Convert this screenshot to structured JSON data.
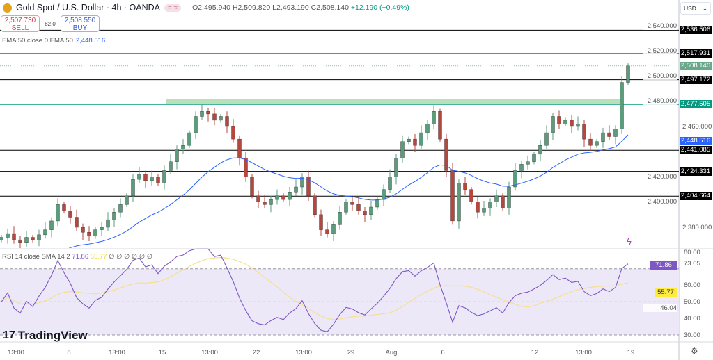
{
  "header": {
    "title": "Gold Spot / U.S. Dollar · 4h · OANDA",
    "o": "O2,495.940",
    "h": "H2,509.820",
    "l": "L2,493.190",
    "c": "C2,508.140",
    "chg": "+12.190 (+0.49%)"
  },
  "trade": {
    "sell_price": "2,507.730",
    "sell_label": "SELL",
    "spread": "82.0",
    "buy_price": "2,508.550",
    "buy_label": "BUY"
  },
  "ema_legend": {
    "label": "EMA 50 close 0 EMA 50",
    "value": "2,448.516"
  },
  "rsi_legend": {
    "label": "RSI 14 close SMA 14 2",
    "rsi": "71.86",
    "sma": "55.77",
    "extra": "∅ ∅ ∅ ∅ ∅ ∅"
  },
  "brand": "TradingView",
  "currency": "USD",
  "colors": {
    "up": "#5b9c7d",
    "down": "#b5473f",
    "ema": "#2962ff",
    "rsi": "#7e57c2",
    "rsi_sma": "#f5e08a",
    "zone": "#a6d8a8"
  },
  "chart_data": {
    "type": "candlestick",
    "price_ticks": [
      "2,540.000",
      "2,520.000",
      "2,500.000",
      "2,480.000",
      "2,460.000",
      "2,420.000",
      "2,400.000",
      "2,380.000"
    ],
    "price_tick_values": [
      2540,
      2520,
      2500,
      2480,
      2460,
      2420,
      2400,
      2380
    ],
    "ylim": [
      2370,
      2545
    ],
    "closes": [
      2372,
      2375,
      2370,
      2368,
      2372,
      2370,
      2374,
      2378,
      2385,
      2398,
      2393,
      2388,
      2380,
      2376,
      2373,
      2378,
      2380,
      2386,
      2392,
      2398,
      2405,
      2418,
      2422,
      2417,
      2420,
      2415,
      2425,
      2432,
      2442,
      2445,
      2455,
      2468,
      2472,
      2470,
      2465,
      2468,
      2460,
      2450,
      2435,
      2420,
      2405,
      2400,
      2398,
      2402,
      2405,
      2402,
      2408,
      2412,
      2420,
      2405,
      2390,
      2378,
      2375,
      2382,
      2392,
      2400,
      2398,
      2393,
      2390,
      2396,
      2402,
      2410,
      2420,
      2435,
      2448,
      2450,
      2445,
      2455,
      2462,
      2472,
      2450,
      2425,
      2385,
      2415,
      2410,
      2400,
      2392,
      2395,
      2400,
      2405,
      2395,
      2412,
      2425,
      2430,
      2432,
      2438,
      2445,
      2455,
      2468,
      2462,
      2465,
      2460,
      2462,
      2450,
      2445,
      2448,
      2455,
      2452,
      2458,
      2495,
      2508.14
    ],
    "levels": [
      {
        "value": 2536.506,
        "label": "2,536.506",
        "color": "#000000"
      },
      {
        "value": 2517.931,
        "label": "2,517.931",
        "color": "#000000"
      },
      {
        "value": 2497.172,
        "label": "2,497.172",
        "color": "#000000"
      },
      {
        "value": 2477.505,
        "label": "2,477.505",
        "color": "#089981"
      },
      {
        "value": 2441.085,
        "label": "2,441.085",
        "color": "#000000"
      },
      {
        "value": 2424.331,
        "label": "2,424.331",
        "color": "#000000"
      },
      {
        "value": 2404.664,
        "label": "2,404.664",
        "color": "#000000"
      }
    ],
    "zone": [
      2477.505,
      2482
    ],
    "last_price": {
      "value": 2508.14,
      "label": "2,508.140"
    },
    "ema_last": {
      "value": 2448.516,
      "label": "2,448.516"
    },
    "rsi_ticks": [
      "80.00",
      "73.05",
      "60.00",
      "50.00",
      "46.04",
      "40.00",
      "30.00"
    ],
    "rsi_tick_values": [
      80,
      73.05,
      60,
      50,
      46.04,
      40,
      30
    ],
    "rsi_bands": [
      70,
      50,
      30
    ],
    "rsi_last": {
      "value": 71.86,
      "label": "71.86"
    },
    "rsi_sma_last": {
      "value": 55.77,
      "label": "55.77"
    },
    "x_labels": [
      "13:00",
      "8",
      "13:00",
      "15",
      "13:00",
      "22",
      "13:00",
      "29",
      "Aug",
      "6",
      "12",
      "13:00",
      "19"
    ]
  }
}
